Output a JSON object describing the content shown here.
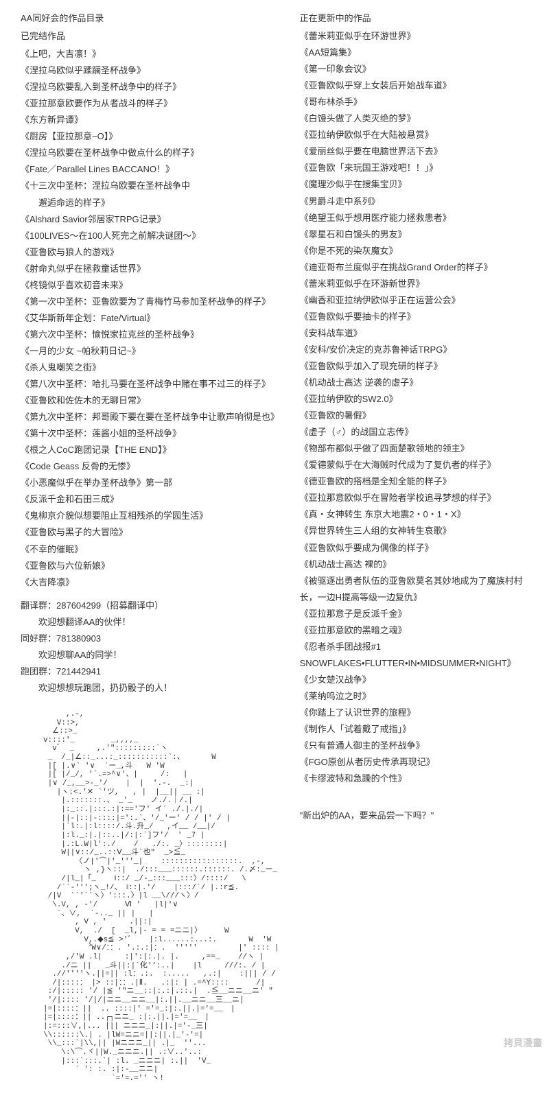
{
  "left": {
    "header": "AA同好会的作品目录",
    "completed_title": "已完结作品",
    "completed_works": [
      "《上吧，大吉凛！》",
      "《涅拉乌欧似乎蹂躏圣杯战争》",
      "《涅拉乌欧要乱入到圣杯战争中的样子》",
      "《亚拉那意欧要作为从者战斗的样子》",
      "《东方新异谭》",
      "《厨房【亚拉那意−O】》",
      "《涅拉乌欧要在圣杯战争中做点什么的样子》",
      "《Fate／Parallel Lines BACCANO！》",
      "《十三次中圣杯：涅拉乌欧要在圣杯战争中\n　　邂逅命运的样子》",
      "《Alshard Savior邻居家TRPG记录》",
      "《100LIVES～在100人死完之前解决谜团～》",
      "《亚鲁欧与狼人的游戏》",
      "《射命丸似乎在拯救童话世界》",
      "《柊镜似乎喜欢初音未来》",
      "《第一次中圣杯：亚鲁欧要为了青梅竹马参加圣杯战争的样子》",
      "《艾华斯新年企划：Fate/Virtual》",
      "《第六次中圣杯：愉悦家拉克丝的圣杯战争》",
      "《一月的少女 ~帕秋莉日记~》",
      "《杀人鬼嘲笑之街》",
      "《第八次中圣杯：哈扎马要在圣杯战争中赌在事不过三的样子》",
      "《亚鲁欧和佐佐木的无聊日常》",
      "《第九次中圣杯：邦哥殿下要在要在圣杯战争中让歌声响彻是也》",
      "《第十次中圣杯：莲酱小姐的圣杯战争》",
      "《根之人CoC跑团记录【THE END】》",
      "《Code Geass 反骨的无惨》",
      "《小恶魔似乎在举办圣杯战争》第一部",
      "《反派千金和石田三成》",
      "《鬼柳京介貌似想要阻止互相残杀的学园生活》",
      "《亚鲁欧与黑子的大冒险》",
      "《不幸的催眠》",
      "《亚鲁欧与六位新娘》",
      "《大吉降凛》"
    ],
    "groups": {
      "trans_label": "翻译群：",
      "trans_id": "287604299（招募翻译中）",
      "trans_note": "欢迎想翻译AA的伙伴！",
      "fan_label": "同好群：",
      "fan_id": "781380903",
      "fan_note": "欢迎想聊AA的同学！",
      "run_label": "跑团群：",
      "run_id": "721442941",
      "run_note": "欢迎想想玩跑团，扔扔骰子的人！"
    }
  },
  "right": {
    "updating_title": "正在更新中的作品",
    "updating_works": [
      "《蕾米莉亚似乎在环游世界》",
      "《AA短篇集》",
      "《第一印象会议》",
      "《亚鲁欧似乎穿上女装后开始战车道》",
      "《哥布林杀手》",
      "《白馒头做了人类灭绝的梦》",
      "《亚拉纳伊欧似乎在大陆被悬赏》",
      "《爱丽丝似乎要在电脑世界活下去》",
      "《亚鲁欧「来玩国王游戏吧！！」》",
      "《魔理沙似乎在搜集宝贝》",
      "《男爵斗走中系列》",
      "《绝望王似乎想用医疗能力拯救患者》",
      "《翠星石和白馒头的男友》",
      "《你是不死的染灰魔女》",
      "《迪亚哥布兰度似乎在挑战Grand Order的样子》",
      "《蕾米莉亚似乎在环游新世界》",
      "《幽香和亚拉纳伊欧似乎正在运营公会》",
      "《亚鲁欧似乎要抽卡的样子》",
      "《安科战车道》",
      "《安科/安价决定的克苏鲁神话TRPG》",
      "《亚鲁欧似乎加入了现充研的样子》",
      "《机动战士高达 逆袭的虚子》",
      "《亚拉纳伊欧的SW2.0》",
      "《亚鲁欧的暑假》",
      "《虚子（♂）的战国立志传》",
      "《物部布都似乎做了四面楚歌领地的领主》",
      "《爱德蒙似乎在大海贼时代成为了复仇者的样子》",
      "《德亚鲁欧的搭档是全知全能的样子》",
      "《亚拉那意欧似乎在冒险者学校追寻梦想的样子》",
      "《真・女神转生 东京大地震2・0・1・X》",
      "《异世界转生三人组的女神转生哀歌》",
      "《亚鲁欧似乎要成为偶像的样子》",
      "《机动战士高达 裸的》",
      "《被驱逐出勇者队伍的亚鲁欧莫名其妙地成为了魔族村村长，一边H提高等级一边复仇》",
      "《亚拉那意子是反派千金》",
      "《亚拉那意欧的黑暗之魂》",
      "《忍者杀手团战报#1 SNOWFLAKES•FLUTTER•IN•MIDSUMMER•NIGHT》",
      "《少女楚汉战争》",
      "《莱纳呜泣之时》",
      "《你踏上了认识世界的旅程》",
      "《制作人「试着戴了戒指」》",
      "《只有普通人御主的圣杯战争》",
      "《FGO原创从者历史传承再现记》",
      "《卡缪波特和急躁的个性》"
    ],
    "quote": "\"新出炉的AA，要来品尝一下吗？\""
  },
  "ascii_art": "          ,.-,\n        V::>,\n       ∠::>_\n     ⅴ::::'_        _,,,,_\n       ⅴﾞ  _     ,.'\":::::::::`ヽ\n      _  /_|∠::_...:_:::::::::::`:、      W\n      |[ |.∨` '∨  `ー_,斗   W 'W\n      |[ |/_/, '´.=>^∨'、|     /:   |\n      |∨ /_,__>-_'/    |  |  '.-.  _:|\n        |ヽ:<.'✕ `'ツ,   , |  |__|| __ :|\n         |.:::::::.、 _'_    ノ./.｜/.|\n         |:_::.|:::.:|:=='フ' イ´ ./.|./|\n         ||-|::|-::::|=':.`、'/_'ー' / / |' / |\n         |`l:.|:l::::/.斗.升_/   ,イ__ /__|/\n         |:l._:|.|::..|/:|:`]フ'/  ' _7 |\n         |.:L.W|l':./    /   ./:. _〉::::::::|\n         W||∨::/_..::Ⅴ__斗`也\"  _>≦_\n            〈ノ|'⌒|'_'''_|    :::::::::::::::::.  ,-,\n              ヽ ,}ヽ::|  ./:::___::::::.::::::. /.〆:_ー_\n         /|l_|「_    ‖::/ _/-_:::___:::〉/::::/   \\ \n        /``-''';ヽ_!/、 ‖::|.'/    |:::/´/ |.:r≦.\n      /|V  ``'``ヽ〉':::.〉|l __\\///ヽ〉/\n       \\.V, , -'/      Ⅵ '   |l|'∨\n        `、∨,  `-.._ || |   |\n            , V , '     .||:|\n            V,  ./  [  _l,|- = = =ニニ|〉     W\n              V,.◆s≦ >'゛   |:l......:...:.       W  'W\n              〝W∨/：：. '.:.:|：.  '''''         |' :::: |\n          ,/'W .l|     :|':|:.|. |.     ,==_    //ヽ |\n         ./ニ ||   _斗||:|`化'':..|    |l     ///:. / |\n       .//''''ヽ.||=|| :l：.:.  :.....   ,.:|    :||| / /\n       /|::::： |> ::|：：.|Ⅱ.   .:|: | .=^Y::::      /|\n      :/|::::: '/ |≦ '\"ニ__::|:.:|.::.|  .≦__ニニ__ニ' \"\n      '/|:::: '/|/|ニニ__ニニ__|:.||.__ニニ__三__ニ|\n     |=|::::：||  .. ::::|' ='=_:|:.||.|='=__　|\n     |=|::::：|| ..┌┐ニニ_ :|:.||.|='=__　|\n     |:=:::∨,|... ||| ニニニ_|:||.|='-_三|\n     \\\\::::::\\.| . |lW=ニニ=||:||.|_'-'=|\n      \\\\_:::`|\\\\,|| |Wニニニ_|| .|_  ''...\n         \\:\\⌒.ヾ||W._ニニニ.|| .:∨..'..:\n         |:::`:::.`| :l. _ニニニ| :.||  'V_\n            ` ': :. :|:-__ニニ|\n                    `='=.='' ヽ!",
  "watermark": "拷貝漫畫"
}
